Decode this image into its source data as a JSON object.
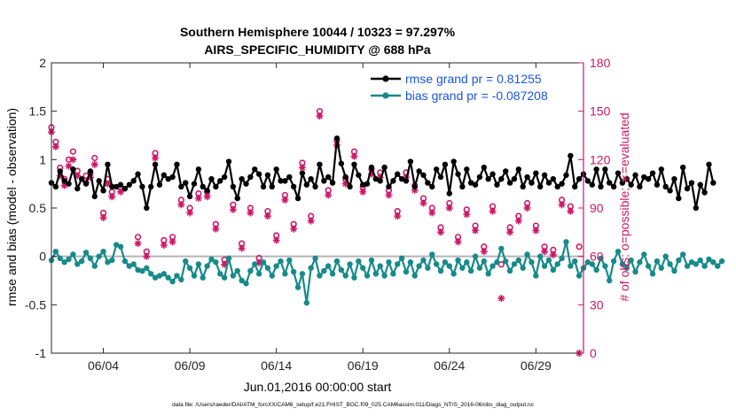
{
  "chart_data": {
    "type": "line",
    "title_line1": "Southern Hemisphere 10044 / 10323 = 97.297%",
    "title_line2": "AIRS_SPECIFIC_HUMIDITY @ 688 hPa",
    "xlabel": "Jun.01,2016 00:00:00 start",
    "ylabel_left": "rmse and bias (model - observation)",
    "ylabel_right": "# of obs: o=possible; ∗=evaluated",
    "footnote": "data file: /Users/raeder/DAI/ATM_forcXX/CAM6_setup/f.e21.FHIST_BGC.f09_025.CAM6assim.011/Diags_NTrS_2016-06/obs_diag_output.nc",
    "xlim": [
      1,
      31.75
    ],
    "ylim_left": [
      -1,
      2
    ],
    "ylim_right": [
      0,
      180
    ],
    "left_ticks": [
      "-1",
      "-0.5",
      "0",
      "0.5",
      "1",
      "1.5",
      "2"
    ],
    "right_ticks": [
      "0",
      "30",
      "60",
      "90",
      "120",
      "150",
      "180"
    ],
    "x_ticks": [
      {
        "day": 4,
        "label": "06/04"
      },
      {
        "day": 9,
        "label": "06/09"
      },
      {
        "day": 14,
        "label": "06/14"
      },
      {
        "day": 19,
        "label": "06/19"
      },
      {
        "day": 24,
        "label": "06/24"
      },
      {
        "day": 29,
        "label": "06/29"
      }
    ],
    "colors": {
      "rmse": "#000000",
      "bias": "#178a8a",
      "obs": "#cc1766",
      "zero_line": "#b4b4b4",
      "legend_text": "#1a56db"
    },
    "series": [
      {
        "name": "rmse grand pr = 0.81255",
        "key": "rmse",
        "t0": 1.0,
        "dt": 0.25,
        "values": [
          0.76,
          0.72,
          0.88,
          0.78,
          0.75,
          0.9,
          0.7,
          0.8,
          0.75,
          0.88,
          0.62,
          0.78,
          0.68,
          0.95,
          0.72,
          0.72,
          0.74,
          0.7,
          0.74,
          0.78,
          0.85,
          0.72,
          0.5,
          0.72,
          0.95,
          0.74,
          0.84,
          0.8,
          0.82,
          0.95,
          0.72,
          0.76,
          0.62,
          0.75,
          0.9,
          0.72,
          0.68,
          0.8,
          0.72,
          0.78,
          0.82,
          0.98,
          0.72,
          0.6,
          0.8,
          0.75,
          0.82,
          0.9,
          0.85,
          0.72,
          0.84,
          0.72,
          0.9,
          0.78,
          0.78,
          0.82,
          0.72,
          0.6,
          0.86,
          0.74,
          0.8,
          0.72,
          0.95,
          0.78,
          0.82,
          0.76,
          1.22,
          0.96,
          0.82,
          0.72,
          0.95,
          0.84,
          0.74,
          0.75,
          0.92,
          0.8,
          0.78,
          0.92,
          0.72,
          0.78,
          0.85,
          0.8,
          0.78,
          0.98,
          0.72,
          0.88,
          0.84,
          0.76,
          0.72,
          0.9,
          0.82,
          0.95,
          0.65,
          0.98,
          0.85,
          0.72,
          0.9,
          0.76,
          0.74,
          0.82,
          0.92,
          0.8,
          0.85,
          0.74,
          0.8,
          0.88,
          0.76,
          0.8,
          0.9,
          0.72,
          0.82,
          0.76,
          0.86,
          0.72,
          0.84,
          0.76,
          0.8,
          0.72,
          0.75,
          0.84,
          1.04,
          0.72,
          0.8,
          0.85,
          0.78,
          0.74,
          0.9,
          0.72,
          0.9,
          0.76,
          0.72,
          0.86,
          0.76,
          0.8,
          0.74,
          0.84,
          0.72,
          0.82,
          0.8,
          0.86,
          0.74,
          0.9,
          0.72,
          0.68,
          0.8,
          0.6,
          0.92,
          0.7,
          0.76,
          0.5,
          0.74,
          0.66,
          0.95,
          0.76
        ]
      },
      {
        "name": "bias grand pr = -0.087208",
        "key": "bias",
        "t0": 1.0,
        "dt": 0.25,
        "values": [
          -0.04,
          0.05,
          -0.02,
          -0.06,
          -0.03,
          0.02,
          -0.08,
          -0.05,
          0.04,
          -0.02,
          -0.1,
          0.0,
          0.05,
          -0.06,
          -0.04,
          0.12,
          0.1,
          -0.05,
          -0.1,
          -0.08,
          -0.14,
          -0.15,
          -0.12,
          -0.18,
          -0.22,
          -0.2,
          -0.18,
          -0.22,
          -0.26,
          -0.2,
          -0.24,
          -0.05,
          -0.12,
          -0.2,
          -0.08,
          -0.22,
          -0.1,
          -0.03,
          -0.06,
          -0.18,
          -0.22,
          -0.02,
          -0.2,
          -0.15,
          -0.25,
          -0.28,
          -0.15,
          -0.08,
          -0.18,
          -0.06,
          -0.12,
          -0.2,
          -0.1,
          -0.05,
          -0.18,
          -0.04,
          -0.16,
          -0.32,
          -0.18,
          -0.48,
          -0.12,
          -0.02,
          -0.2,
          -0.15,
          -0.1,
          -0.18,
          -0.05,
          -0.14,
          -0.2,
          -0.08,
          -0.22,
          -0.05,
          -0.12,
          -0.2,
          -0.04,
          -0.18,
          -0.1,
          -0.2,
          -0.06,
          -0.18,
          -0.08,
          -0.02,
          -0.16,
          -0.06,
          -0.2,
          -0.1,
          -0.04,
          -0.12,
          0.02,
          -0.08,
          -0.15,
          -0.06,
          -0.1,
          -0.18,
          -0.04,
          -0.12,
          -0.06,
          -0.15,
          0.0,
          -0.12,
          -0.05,
          -0.18,
          -0.1,
          -0.06,
          0.08,
          -0.05,
          -0.15,
          -0.08,
          -0.04,
          -0.12,
          0.02,
          -0.06,
          -0.2,
          0.0,
          -0.1,
          -0.04,
          -0.14,
          -0.08,
          -0.02,
          0.15,
          -0.1,
          -0.05,
          -0.2,
          -0.12,
          -0.06,
          -0.08,
          -0.14,
          -0.02,
          -0.1,
          -0.25,
          -0.05,
          0.05,
          -0.08,
          -0.12,
          -0.04,
          -0.16,
          -0.06,
          0.02,
          -0.1,
          -0.18,
          -0.05,
          -0.12,
          0.0,
          -0.08,
          -0.15,
          -0.04,
          0.02,
          -0.1,
          -0.06,
          -0.08,
          -0.04,
          -0.1,
          -0.03,
          -0.06,
          -0.1,
          -0.05
        ]
      }
    ],
    "obs_possible": [
      [
        1.0,
        140
      ],
      [
        1.25,
        131
      ],
      [
        1.5,
        115
      ],
      [
        1.75,
        108
      ],
      [
        2.0,
        120
      ],
      [
        2.25,
        125
      ],
      [
        2.5,
        113
      ],
      [
        3.0,
        110
      ],
      [
        3.25,
        112
      ],
      [
        3.5,
        121
      ],
      [
        4.0,
        87
      ],
      [
        4.25,
        108
      ],
      [
        4.5,
        100
      ],
      [
        5.0,
        103
      ],
      [
        6.0,
        72
      ],
      [
        6.5,
        63
      ],
      [
        7.0,
        124
      ],
      [
        7.5,
        70
      ],
      [
        8.0,
        72
      ],
      [
        8.5,
        95
      ],
      [
        9.0,
        90
      ],
      [
        9.5,
        99
      ],
      [
        10.0,
        100
      ],
      [
        10.5,
        80
      ],
      [
        11.0,
        58
      ],
      [
        11.5,
        92
      ],
      [
        12.0,
        68
      ],
      [
        12.5,
        90
      ],
      [
        13.0,
        59
      ],
      [
        13.5,
        88
      ],
      [
        14.0,
        73
      ],
      [
        14.5,
        98
      ],
      [
        15.0,
        80
      ],
      [
        15.5,
        118
      ],
      [
        16.0,
        85
      ],
      [
        16.5,
        150
      ],
      [
        17.0,
        101
      ],
      [
        17.5,
        132
      ],
      [
        18.0,
        108
      ],
      [
        18.5,
        125
      ],
      [
        19.0,
        103
      ],
      [
        19.5,
        114
      ],
      [
        20.0,
        112
      ],
      [
        20.5,
        101
      ],
      [
        21.0,
        88
      ],
      [
        21.5,
        112
      ],
      [
        22.0,
        104
      ],
      [
        22.5,
        96
      ],
      [
        23.0,
        90
      ],
      [
        23.5,
        78
      ],
      [
        24.0,
        93
      ],
      [
        24.5,
        72
      ],
      [
        25.0,
        89
      ],
      [
        25.5,
        79
      ],
      [
        26.0,
        66
      ],
      [
        26.5,
        91
      ],
      [
        27.0,
        55
      ],
      [
        27.5,
        78
      ],
      [
        28.0,
        85
      ],
      [
        28.5,
        93
      ],
      [
        29.0,
        79
      ],
      [
        29.5,
        66
      ],
      [
        30.0,
        64
      ],
      [
        30.5,
        95
      ],
      [
        31.0,
        91
      ],
      [
        31.5,
        66
      ]
    ],
    "obs_evaluated": [
      [
        1.0,
        137
      ],
      [
        1.25,
        128
      ],
      [
        1.5,
        110
      ],
      [
        1.75,
        104
      ],
      [
        2.0,
        116
      ],
      [
        2.25,
        120
      ],
      [
        2.5,
        110
      ],
      [
        3.0,
        106
      ],
      [
        3.25,
        109
      ],
      [
        3.5,
        117
      ],
      [
        4.0,
        84
      ],
      [
        4.25,
        105
      ],
      [
        4.5,
        97
      ],
      [
        5.0,
        100
      ],
      [
        6.0,
        68
      ],
      [
        6.5,
        60
      ],
      [
        7.0,
        121
      ],
      [
        7.5,
        67
      ],
      [
        8.0,
        69
      ],
      [
        8.5,
        92
      ],
      [
        9.0,
        87
      ],
      [
        9.5,
        96
      ],
      [
        10.0,
        97
      ],
      [
        10.5,
        77
      ],
      [
        11.0,
        55
      ],
      [
        11.5,
        89
      ],
      [
        12.0,
        65
      ],
      [
        12.5,
        87
      ],
      [
        13.0,
        56
      ],
      [
        13.5,
        85
      ],
      [
        14.0,
        70
      ],
      [
        14.5,
        95
      ],
      [
        15.0,
        77
      ],
      [
        15.5,
        115
      ],
      [
        16.0,
        82
      ],
      [
        16.5,
        147
      ],
      [
        17.0,
        98
      ],
      [
        17.5,
        129
      ],
      [
        18.0,
        105
      ],
      [
        18.5,
        122
      ],
      [
        19.0,
        100
      ],
      [
        19.5,
        111
      ],
      [
        20.0,
        109
      ],
      [
        20.5,
        98
      ],
      [
        21.0,
        85
      ],
      [
        21.5,
        109
      ],
      [
        22.0,
        101
      ],
      [
        22.5,
        93
      ],
      [
        23.0,
        87
      ],
      [
        23.5,
        75
      ],
      [
        24.0,
        90
      ],
      [
        24.5,
        69
      ],
      [
        25.0,
        86
      ],
      [
        25.5,
        76
      ],
      [
        26.0,
        63
      ],
      [
        26.5,
        88
      ],
      [
        27.0,
        34
      ],
      [
        27.5,
        75
      ],
      [
        28.0,
        82
      ],
      [
        28.5,
        90
      ],
      [
        29.0,
        76
      ],
      [
        29.5,
        63
      ],
      [
        30.0,
        61
      ],
      [
        30.5,
        92
      ],
      [
        31.0,
        88
      ],
      [
        31.5,
        0
      ]
    ]
  }
}
